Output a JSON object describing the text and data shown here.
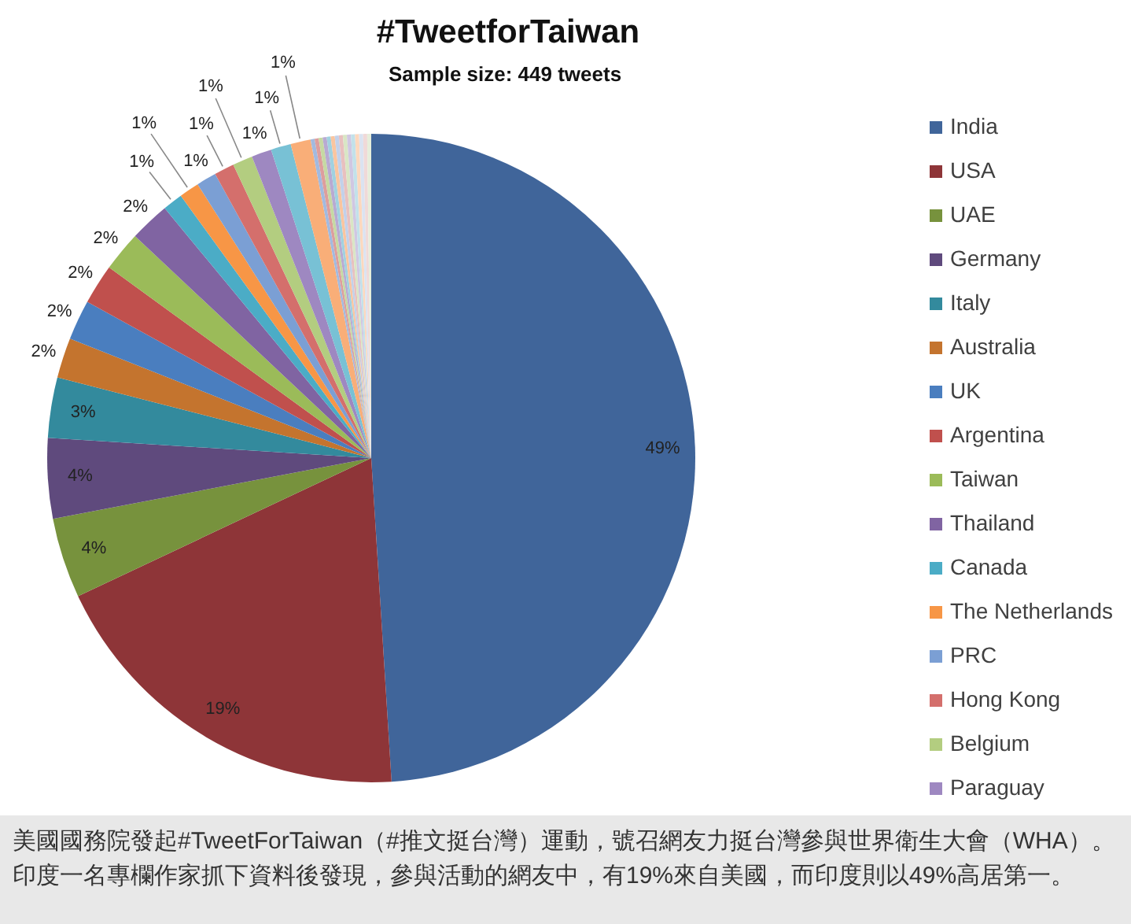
{
  "chart_data": {
    "type": "pie",
    "title": "#TweetforTaiwan",
    "subtitle": "Sample size: 449 tweets",
    "categories": [
      "India",
      "USA",
      "UAE",
      "Germany",
      "Italy",
      "Australia",
      "UK",
      "Argentina",
      "Taiwan",
      "Thailand",
      "Canada",
      "The Netherlands",
      "PRC",
      "Hong Kong",
      "Belgium",
      "Paraguay",
      null,
      null,
      null,
      null,
      null,
      null,
      null,
      null,
      null,
      null,
      null,
      null,
      null,
      null,
      null,
      null,
      null
    ],
    "values": [
      49,
      19,
      4,
      4,
      3,
      2,
      2,
      2,
      2,
      2,
      1,
      1,
      1,
      1,
      1,
      1,
      1,
      1,
      0.2,
      0.2,
      0.2,
      0.2,
      0.2,
      0.2,
      0.2,
      0.2,
      0.2,
      0.2,
      0.2,
      0.2,
      0.2,
      0.2,
      0.2
    ],
    "colors": [
      "#40659a",
      "#8e3538",
      "#77923d",
      "#5f4a7d",
      "#338a9d",
      "#c4742e",
      "#4a7ebf",
      "#c0504d",
      "#9bbb59",
      "#8064a2",
      "#4bacc6",
      "#f79646",
      "#7b9fd4",
      "#d46f6c",
      "#b3cd80",
      "#9e88c1",
      "#78c1d5",
      "#f9ae78",
      "#a2badf",
      "#dd9e9d",
      "#c6d9a3",
      "#b8aad2",
      "#a0d1e0",
      "#fac59f",
      "#c2d1ea",
      "#e8c0bf",
      "#d9e6c5",
      "#d0c7e2",
      "#c2e1ea",
      "#fcd8be",
      "#dbe3f1",
      "#f0d9d8",
      "#e6eedb"
    ],
    "value_labels": [
      "49%",
      "19%",
      "4%",
      "4%",
      "3%",
      "2%",
      "2%",
      "2%",
      "2%",
      "2%",
      "1%",
      "1%",
      "1%",
      "1%",
      "1%",
      "1%",
      "1%",
      "1%",
      null,
      null,
      null,
      null,
      null,
      null,
      null,
      null,
      null,
      null,
      null,
      null,
      null,
      null,
      null
    ],
    "legend": "right",
    "annotations": [
      "美國國務院發起#TweetForTaiwan（#推文挺台灣）運動，號召網友力挺台灣參與世界衛生大會（WHA）。印度一名專欄作家抓下資料後發現，參與活動的網友中，有19%來自美國，而印度則以49%高居第一。"
    ]
  }
}
